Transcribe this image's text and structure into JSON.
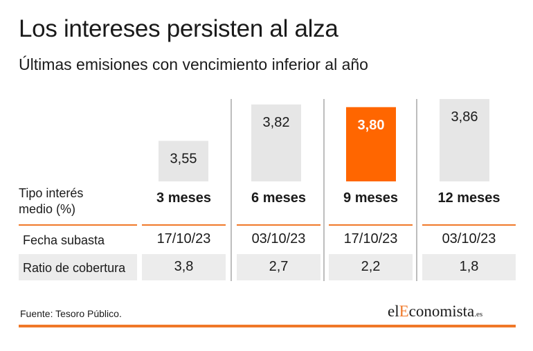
{
  "header": {
    "title": "Los intereses persisten al alza",
    "subtitle": "Últimas emisiones con vencimiento inferior al año"
  },
  "row_labels": {
    "tipo": "Tipo interés medio (%)",
    "fecha": "Fecha subasta",
    "ratio": "Ratio de cobertura"
  },
  "columns": [
    {
      "label": "3 meses",
      "tipo": "3,55",
      "fecha": "17/10/23",
      "ratio": "3,8"
    },
    {
      "label": "6 meses",
      "tipo": "3,82",
      "fecha": "03/10/23",
      "ratio": "2,7"
    },
    {
      "label": "9 meses",
      "tipo": "3,80",
      "fecha": "17/10/23",
      "ratio": "2,2"
    },
    {
      "label": "12 meses",
      "tipo": "3,86",
      "fecha": "03/10/23",
      "ratio": "1,8"
    }
  ],
  "chart_data": {
    "type": "bar",
    "categories": [
      "3 meses",
      "6 meses",
      "9 meses",
      "12 meses"
    ],
    "values": [
      3.55,
      3.82,
      3.8,
      3.86
    ],
    "value_labels": [
      "3,55",
      "3,82",
      "3,80",
      "3,86"
    ],
    "highlight_index": 2,
    "title": "Los intereses persisten al alza",
    "subtitle": "Últimas emisiones con vencimiento inferior al año",
    "ylabel": "Tipo interés medio (%)",
    "grid": false,
    "legend": "none"
  },
  "footer": {
    "source": "Fuente: Tesoro Público.",
    "brand_prefix": "el",
    "brand_highlight": "E",
    "brand_rest": "conomista",
    "brand_suffix": ".es"
  },
  "colors": {
    "bar": "#e6e6e6",
    "highlight": "#ff6600",
    "accent": "#f07828",
    "divider": "#bdbdbd",
    "row_bg": "#ececec"
  }
}
